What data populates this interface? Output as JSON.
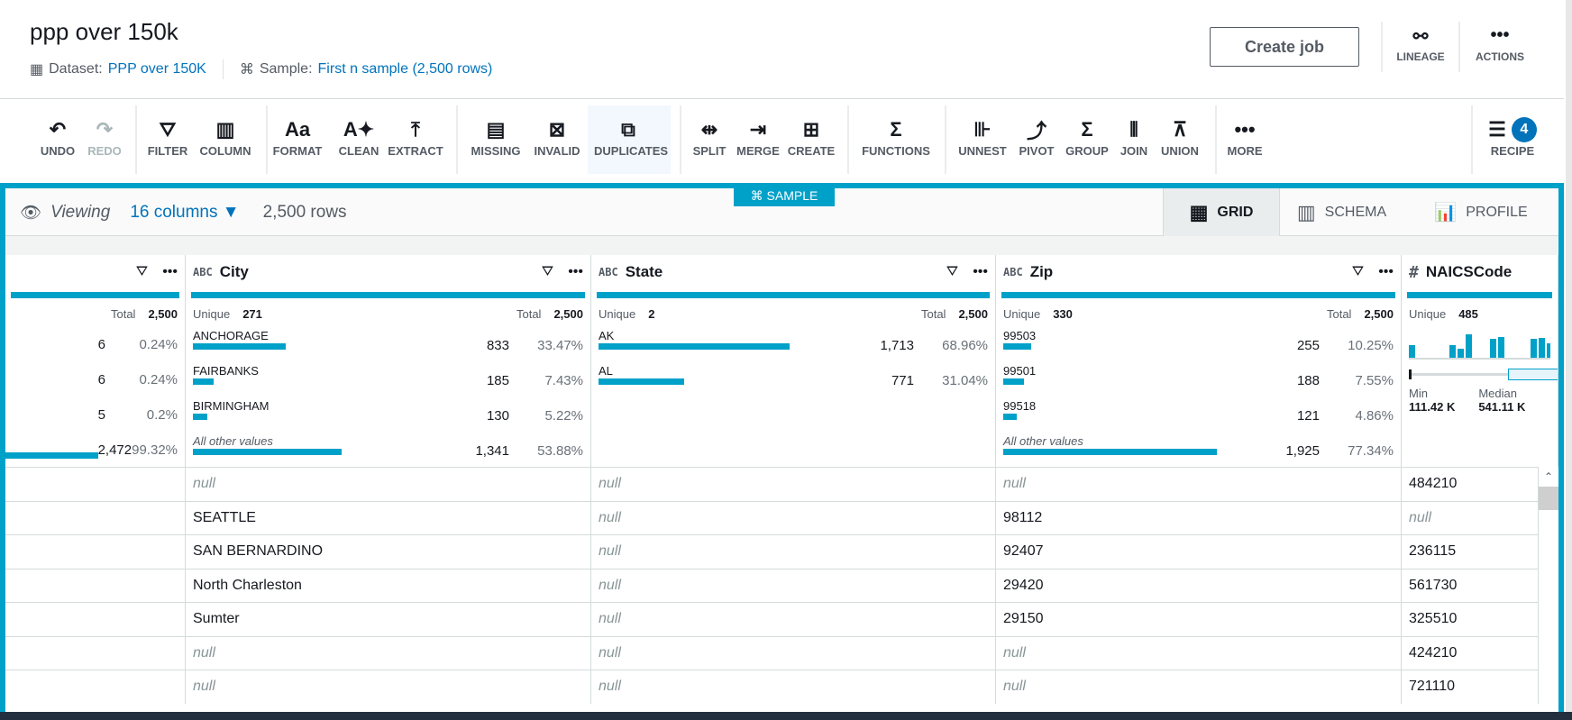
{
  "header": {
    "title": "ppp over 150k",
    "dataset_label": "Dataset:",
    "dataset_value": "PPP over 150K",
    "sample_label": "Sample:",
    "sample_value": "First n sample (2,500 rows)",
    "create_job": "Create job",
    "lineage": "LINEAGE",
    "actions": "ACTIONS"
  },
  "toolbar": [
    {
      "label": "UNDO",
      "icon": "undo-icon",
      "glyph": "↶",
      "disabled": false
    },
    {
      "label": "REDO",
      "icon": "redo-icon",
      "glyph": "↷",
      "disabled": true
    },
    {
      "label": "FILTER",
      "icon": "filter-icon",
      "glyph": "⛛",
      "disabled": false
    },
    {
      "label": "COLUMN",
      "icon": "column-icon",
      "glyph": "▥",
      "disabled": false
    },
    {
      "label": "FORMAT",
      "icon": "format-icon",
      "glyph": "Aa",
      "disabled": false
    },
    {
      "label": "CLEAN",
      "icon": "clean-icon",
      "glyph": "A✦",
      "disabled": false
    },
    {
      "label": "EXTRACT",
      "icon": "extract-icon",
      "glyph": "⤒",
      "disabled": false
    },
    {
      "label": "MISSING",
      "icon": "missing-icon",
      "glyph": "▤",
      "disabled": false
    },
    {
      "label": "INVALID",
      "icon": "invalid-icon",
      "glyph": "⊠",
      "disabled": false
    },
    {
      "label": "DUPLICATES",
      "icon": "duplicates-icon",
      "glyph": "⧉",
      "disabled": false
    },
    {
      "label": "SPLIT",
      "icon": "split-icon",
      "glyph": "⇹",
      "disabled": false
    },
    {
      "label": "MERGE",
      "icon": "merge-icon",
      "glyph": "⇥",
      "disabled": false
    },
    {
      "label": "CREATE",
      "icon": "create-column-icon",
      "glyph": "⊞",
      "disabled": false
    },
    {
      "label": "FUNCTIONS",
      "icon": "sigma-icon",
      "glyph": "Σ",
      "disabled": false
    },
    {
      "label": "UNNEST",
      "icon": "unnest-icon",
      "glyph": "⊪",
      "disabled": false
    },
    {
      "label": "PIVOT",
      "icon": "pivot-icon",
      "glyph": "⤴",
      "disabled": false
    },
    {
      "label": "GROUP",
      "icon": "group-icon",
      "glyph": "Σ",
      "disabled": false
    },
    {
      "label": "JOIN",
      "icon": "join-icon",
      "glyph": "⫴",
      "disabled": false
    },
    {
      "label": "UNION",
      "icon": "union-icon",
      "glyph": "⊼",
      "disabled": false
    },
    {
      "label": "MORE",
      "icon": "more-icon",
      "glyph": "•••",
      "disabled": false
    },
    {
      "label": "RECIPE",
      "icon": "recipe-icon",
      "glyph": "☰",
      "disabled": false
    }
  ],
  "recipe_count": "4",
  "sample_badge": "SAMPLE",
  "viewbar": {
    "viewing": "Viewing",
    "columns": "16 columns",
    "rows": "2,500 rows"
  },
  "view_tabs": [
    {
      "label": "GRID",
      "active": true
    },
    {
      "label": "SCHEMA",
      "active": false
    },
    {
      "label": "PROFILE",
      "active": false
    }
  ],
  "columns": [
    {
      "name": "",
      "type": "",
      "total_label": "Total",
      "total": "2,500",
      "values": [
        {
          "count": "6",
          "pct": "0.24%",
          "p": 0.24
        },
        {
          "count": "6",
          "pct": "0.24%",
          "p": 0.24
        },
        {
          "count": "5",
          "pct": "0.2%",
          "p": 0.2
        },
        {
          "count": "2,472",
          "pct": "99.32%",
          "p": 99.32
        }
      ]
    },
    {
      "name": "City",
      "type": "ABC",
      "unique_label": "Unique",
      "unique": "271",
      "total_label": "Total",
      "total": "2,500",
      "values": [
        {
          "label": "ANCHORAGE",
          "count": "833",
          "pct": "33.47%",
          "p": 33.47
        },
        {
          "label": "FAIRBANKS",
          "count": "185",
          "pct": "7.43%",
          "p": 7.43
        },
        {
          "label": "BIRMINGHAM",
          "count": "130",
          "pct": "5.22%",
          "p": 5.22
        },
        {
          "label": "All other values",
          "other": true,
          "count": "1,341",
          "pct": "53.88%",
          "p": 53.88
        }
      ]
    },
    {
      "name": "State",
      "type": "ABC",
      "unique_label": "Unique",
      "unique": "2",
      "total_label": "Total",
      "total": "2,500",
      "values": [
        {
          "label": "AK",
          "count": "1,713",
          "pct": "68.96%",
          "p": 68.96
        },
        {
          "label": "AL",
          "count": "771",
          "pct": "31.04%",
          "p": 31.04
        }
      ]
    },
    {
      "name": "Zip",
      "type": "ABC",
      "unique_label": "Unique",
      "unique": "330",
      "total_label": "Total",
      "total": "2,500",
      "values": [
        {
          "label": "99503",
          "count": "255",
          "pct": "10.25%",
          "p": 10.25
        },
        {
          "label": "99501",
          "count": "188",
          "pct": "7.55%",
          "p": 7.55
        },
        {
          "label": "99518",
          "count": "121",
          "pct": "4.86%",
          "p": 4.86
        },
        {
          "label": "All other values",
          "other": true,
          "count": "1,925",
          "pct": "77.34%",
          "p": 77.34
        }
      ]
    },
    {
      "name": "NAICSCode",
      "type": "#",
      "unique_label": "Unique",
      "unique": "485",
      "min_label": "Min",
      "min": "111.42 K",
      "median_label": "Median",
      "median": "541.11 K",
      "histogram": [
        0.55,
        0,
        0,
        0,
        0,
        0.55,
        0.4,
        1,
        0,
        0,
        0.8,
        0.9,
        0,
        0,
        0,
        0.8,
        0.85,
        0.6
      ]
    }
  ],
  "rows": [
    [
      "null",
      "null",
      "null",
      "484210"
    ],
    [
      "SEATTLE",
      "null",
      "98112",
      "null"
    ],
    [
      "SAN BERNARDINO",
      "null",
      "92407",
      "236115"
    ],
    [
      "North Charleston",
      "null",
      "29420",
      "561730"
    ],
    [
      "Sumter",
      "null",
      "29150",
      "325510"
    ],
    [
      "null",
      "null",
      "null",
      "424210"
    ],
    [
      "null",
      "null",
      "null",
      "721110"
    ]
  ],
  "colors": {
    "accent": "#00a1c9",
    "link": "#0073bb",
    "null_text": "#879596"
  }
}
